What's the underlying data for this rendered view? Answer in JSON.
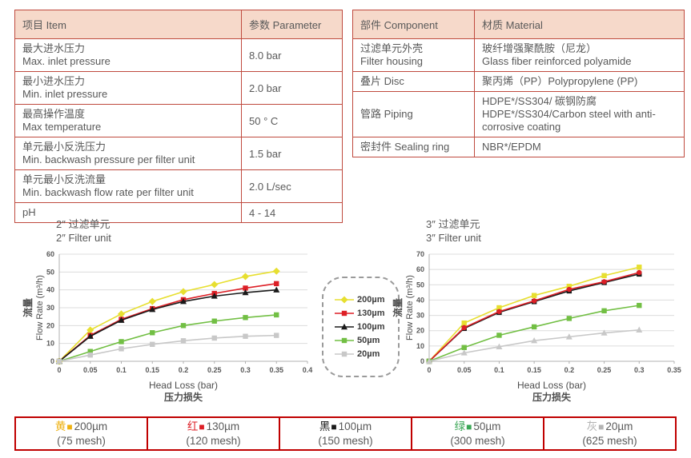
{
  "colors": {
    "table_border": "#bf4a3e",
    "table_header_bg": "#f6d9ca",
    "bottom_border": "#c00000",
    "text": "#595959"
  },
  "spec_table": {
    "headers": [
      "项目 Item",
      "参数 Parameter"
    ],
    "rows": [
      {
        "item_lines": [
          "最大进水压力",
          "Max. inlet pressure"
        ],
        "value": "8.0 bar"
      },
      {
        "item_lines": [
          "最小进水压力",
          "Min. inlet pressure"
        ],
        "value": "2.0 bar"
      },
      {
        "item_lines": [
          "最高操作温度",
          "Max temperature"
        ],
        "value": "50 ° C"
      },
      {
        "item_lines": [
          "单元最小反洗压力",
          "Min. backwash pressure per filter unit"
        ],
        "value": "1.5 bar"
      },
      {
        "item_lines": [
          "单元最小反洗流量",
          "Min. backwash flow rate per filter unit"
        ],
        "value": "2.0 L/sec"
      },
      {
        "item_lines": [
          "pH"
        ],
        "value": "4 - 14"
      }
    ]
  },
  "material_table": {
    "headers": [
      "部件 Component",
      "材质 Material"
    ],
    "rows": [
      {
        "component_lines": [
          "过滤单元外壳",
          "Filter housing"
        ],
        "material_lines": [
          "玻纤增强聚酰胺（尼龙）",
          "Glass fiber reinforced polyamide"
        ]
      },
      {
        "component_lines": [
          "叠片 Disc"
        ],
        "material_lines": [
          "聚丙烯（PP）Polypropylene (PP)"
        ]
      },
      {
        "component_lines": [
          "管路 Piping"
        ],
        "material_lines": [
          "HDPE*/SS304/ 碳钢防腐",
          "HDPE*/SS304/Carbon steel with anti-corrosive coating"
        ]
      },
      {
        "component_lines": [
          "密封件 Sealing ring"
        ],
        "material_lines": [
          "NBR*/EPDM"
        ]
      }
    ]
  },
  "chart_data": [
    {
      "type": "line",
      "title_zh": "2″ 过滤单元",
      "title_en": "2″ Filter unit",
      "xlabel": "Head Loss (bar)",
      "xlabel_zh": "压力损失",
      "ylabel": "Flow Rate (m³/h)",
      "ylabel_zh": "流量",
      "xlim": [
        0,
        0.4
      ],
      "ylim": [
        0,
        60
      ],
      "xticks": [
        "0",
        "0.05",
        "0.1",
        "0.15",
        "0.2",
        "0.25",
        "0.3",
        "0.35",
        "0.4"
      ],
      "yticks": [
        0,
        10,
        20,
        30,
        40,
        50,
        60
      ],
      "grid": true,
      "x": [
        0,
        0.05,
        0.1,
        0.15,
        0.2,
        0.25,
        0.3,
        0.35
      ],
      "series": [
        {
          "name": "200µm",
          "color": "#e7df30",
          "marker": "diamond",
          "values": [
            0,
            17.5,
            26.5,
            33.5,
            39,
            43,
            47.5,
            50.5
          ]
        },
        {
          "name": "130µm",
          "color": "#dd1f26",
          "marker": "square",
          "values": [
            0,
            14.5,
            23.5,
            29.5,
            34.5,
            38,
            41,
            43.5
          ]
        },
        {
          "name": "100µm",
          "color": "#1a1a1a",
          "marker": "triangle",
          "values": [
            0,
            14,
            23,
            29,
            33.5,
            36.5,
            38.5,
            40
          ]
        },
        {
          "name": "50µm",
          "color": "#72bf44",
          "marker": "square",
          "values": [
            0,
            5.5,
            11,
            16,
            20,
            22.5,
            24.5,
            26
          ]
        },
        {
          "name": "20µm",
          "color": "#c8c8c8",
          "marker": "square",
          "values": [
            0,
            3.5,
            7,
            9.5,
            11.5,
            13,
            14,
            14.5
          ]
        }
      ]
    },
    {
      "type": "line",
      "title_zh": "3″ 过滤单元",
      "title_en": "3″ Filter unit",
      "xlabel": "Head Loss (bar)",
      "xlabel_zh": "压力损失",
      "ylabel": "Flow Rate (m³/h)",
      "ylabel_zh": "流量",
      "xlim": [
        0,
        0.35
      ],
      "ylim": [
        0,
        70
      ],
      "xticks": [
        "0",
        "0.05",
        "0.1",
        "0.15",
        "0.2",
        "0.25",
        "0.3",
        "0.35"
      ],
      "yticks": [
        0,
        10,
        20,
        30,
        40,
        50,
        60,
        70
      ],
      "grid": true,
      "x": [
        0,
        0.05,
        0.1,
        0.15,
        0.2,
        0.25,
        0.3
      ],
      "series": [
        {
          "name": "200µm",
          "color": "#e7df30",
          "marker": "square",
          "values": [
            0,
            25,
            35,
            43,
            49,
            56,
            61.5
          ]
        },
        {
          "name": "100µm",
          "color": "#1a1a1a",
          "marker": "square",
          "values": [
            0,
            21.5,
            32,
            39,
            46,
            51.5,
            57
          ]
        },
        {
          "name": "130µm",
          "color": "#dd1f26",
          "marker": "circle",
          "values": [
            0,
            22,
            32.5,
            39.5,
            47,
            52,
            58
          ]
        },
        {
          "name": "50µm",
          "color": "#72bf44",
          "marker": "square",
          "values": [
            0,
            9,
            17,
            22.5,
            28,
            33,
            36.5
          ]
        },
        {
          "name": "20µm",
          "color": "#c8c8c8",
          "marker": "triangle",
          "values": [
            0,
            5.5,
            9.5,
            13.5,
            16,
            18.5,
            20.5
          ]
        }
      ]
    }
  ],
  "mid_legend": {
    "items": [
      {
        "label": "200µm",
        "color": "#e7df30",
        "marker": "diamond"
      },
      {
        "label": "130µm",
        "color": "#dd1f26",
        "marker": "square"
      },
      {
        "label": "100µm",
        "color": "#1a1a1a",
        "marker": "triangle"
      },
      {
        "label": "50µm",
        "color": "#72bf44",
        "marker": "square"
      },
      {
        "label": "20µm",
        "color": "#c8c8c8",
        "marker": "square"
      }
    ]
  },
  "bottom_legend": {
    "cells": [
      {
        "color_zh": "黄",
        "color": "#eeb111",
        "size": "200µm",
        "mesh": "(75 mesh)"
      },
      {
        "color_zh": "红",
        "color": "#dd1f26",
        "size": "130µm",
        "mesh": "(120 mesh)"
      },
      {
        "color_zh": "黑",
        "color": "#1a1a1a",
        "size": "100µm",
        "mesh": "(150 mesh)"
      },
      {
        "color_zh": "绿",
        "color": "#3aa655",
        "size": "50µm",
        "mesh": "(300 mesh)"
      },
      {
        "color_zh": "灰",
        "color": "#b3b3b3",
        "size": "20µm",
        "mesh": "(625 mesh)"
      }
    ]
  }
}
